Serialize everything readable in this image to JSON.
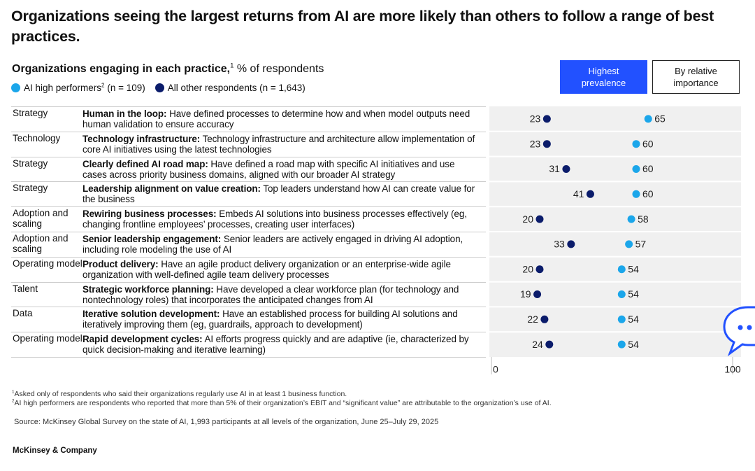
{
  "chart_data": {
    "type": "dot",
    "title": "Organizations seeing the largest returns from AI are more likely than others to follow a range of best practices.",
    "subtitle": "Organizations engaging in each practice,",
    "subtitle_note": "1",
    "unit": "% of respondents",
    "buttons": [
      "Highest prevalence",
      "By relative importance"
    ],
    "categories": [
      "Strategy",
      "Technology",
      "Strategy",
      "Strategy",
      "Adoption and scaling",
      "Adoption and scaling",
      "Operating model",
      "Talent",
      "Data",
      "Operating model"
    ],
    "practices": [
      {
        "label": "Human in the loop:",
        "description": "Have defined processes to determine how and when model outputs need human validation to ensure accuracy"
      },
      {
        "label": "Technology infrastructure:",
        "description": "Technology infrastructure and architecture allow implementation of core AI initiatives using the latest technologies"
      },
      {
        "label": "Clearly defined AI road map:",
        "description": "Have defined a road map with specific AI initiatives and use cases across priority business domains, aligned with our broader AI strategy"
      },
      {
        "label": "Leadership alignment on value creation:",
        "description": "Top leaders understand how AI can create value for the business"
      },
      {
        "label": "Rewiring business processes:",
        "description": "Embeds AI solutions into business processes effectively (eg, changing frontline employees’ processes, creating user interfaces)"
      },
      {
        "label": "Senior leadership engagement:",
        "description": "Senior leaders are actively engaged in driving AI adoption, including role modeling the use of AI"
      },
      {
        "label": "Product delivery:",
        "description": "Have an agile product delivery organization or an enterprise-wide agile organization with well-defined agile team delivery processes"
      },
      {
        "label": "Strategic workforce planning:",
        "description": "Have developed a clear workforce plan (for technology and nontechnology roles) that incorporates the anticipated changes from AI"
      },
      {
        "label": "Iterative solution development:",
        "description": "Have an established process for building AI solutions and iteratively improving them (eg, guardrails, approach to development)"
      },
      {
        "label": "Rapid development cycles:",
        "description": "AI efforts progress quickly and are adaptive (ie, characterized by quick decision-making and iterative learning)"
      }
    ],
    "series": [
      {
        "name": "AI high performers",
        "note": "2",
        "n": "(n = 109)",
        "color": "#1ba6ea",
        "values": [
          65,
          60,
          60,
          60,
          58,
          57,
          54,
          54,
          54,
          54
        ]
      },
      {
        "name": "All other respondents",
        "n": "(n = 1,643)",
        "color": "#0b1c6b",
        "values": [
          23,
          23,
          31,
          41,
          20,
          33,
          20,
          19,
          22,
          24
        ]
      }
    ],
    "xlim": [
      0,
      100
    ],
    "xticks": [
      0,
      100
    ],
    "footnotes": [
      {
        "mark": "1",
        "text": "Asked only of respondents who said their organizations regularly use AI in at least 1 business function."
      },
      {
        "mark": "2",
        "text": "AI high performers are respondents who reported that more than 5% of their organization’s EBIT and “significant value” are attributable to the organization’s use of AI."
      }
    ],
    "source": "Source: McKinsey Global Survey on the state of AI, 1,993 participants at all levels of the organization, June 25–July 29, 2025",
    "brand": "McKinsey & Company"
  }
}
